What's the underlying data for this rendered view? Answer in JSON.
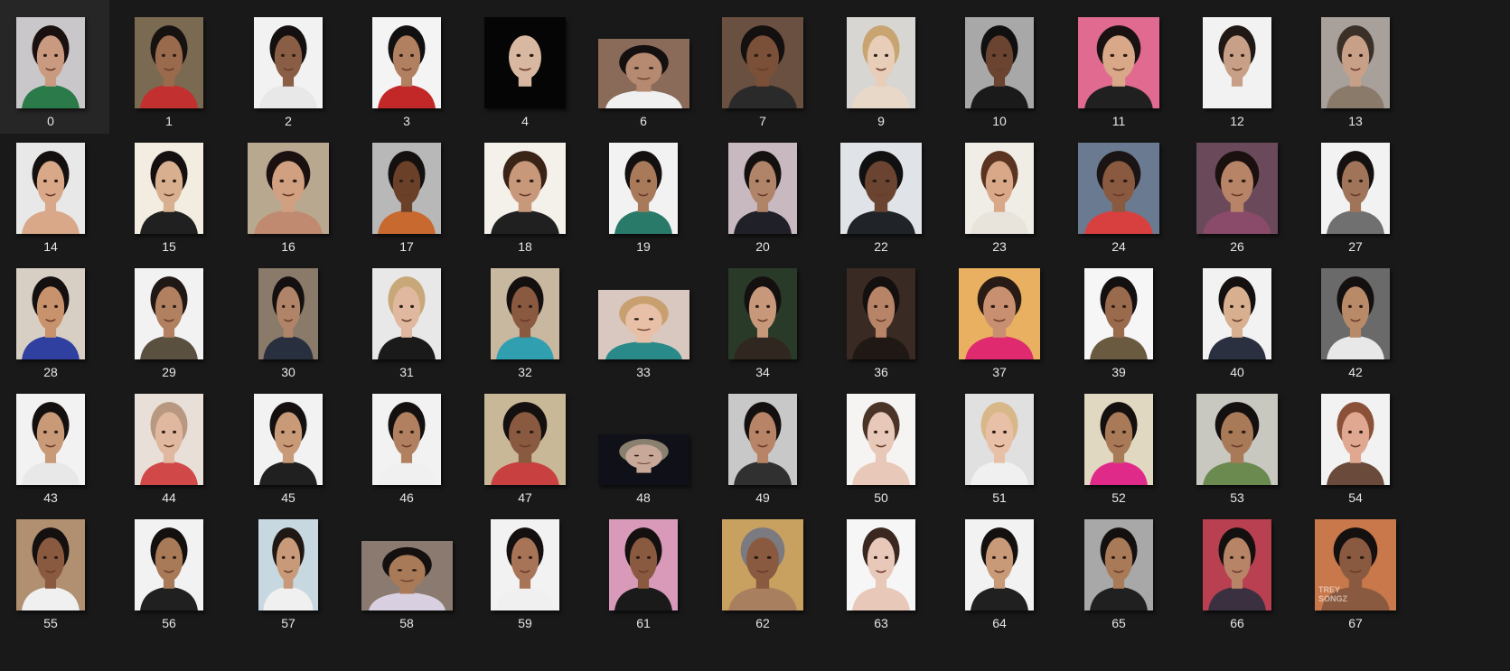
{
  "explorer": {
    "items": [
      {
        "label": "0",
        "icon": "portrait-thumbnail",
        "bg": "#c9c7c9",
        "skin": "#c99a80",
        "hair": "#1a1010",
        "shirt": "#2b7a4a",
        "shape": "portrait"
      },
      {
        "label": "1",
        "icon": "portrait-thumbnail",
        "bg": "#7a6a52",
        "skin": "#9a6a4c",
        "hair": "#161210",
        "shirt": "#c23030",
        "shape": "portrait"
      },
      {
        "label": "2",
        "icon": "portrait-thumbnail",
        "bg": "#f2f2f2",
        "skin": "#8a5e45",
        "hair": "#141010",
        "shirt": "#e8e8e8",
        "shape": "portrait"
      },
      {
        "label": "3",
        "icon": "portrait-thumbnail",
        "bg": "#f4f4f4",
        "skin": "#b08060",
        "hair": "#121010",
        "shirt": "#c22828",
        "shape": "portrait"
      },
      {
        "label": "4",
        "icon": "portrait-thumbnail",
        "bg": "#050505",
        "skin": "#d8b8a0",
        "hair": "#050505",
        "shirt": "#050505",
        "shape": "wide"
      },
      {
        "label": "6",
        "icon": "portrait-thumbnail",
        "bg": "#8a6a58",
        "skin": "#b58a70",
        "hair": "#151010",
        "shirt": "#f0f0f0",
        "shape": "landscape"
      },
      {
        "label": "7",
        "icon": "portrait-thumbnail",
        "bg": "#6a5040",
        "skin": "#7a5038",
        "hair": "#141010",
        "shirt": "#2a2a2a",
        "shape": "wide"
      },
      {
        "label": "9",
        "icon": "portrait-thumbnail",
        "bg": "#d8d6d2",
        "skin": "#e8cdb8",
        "hair": "#c7a470",
        "shirt": "#e8d8c8",
        "shape": "portrait"
      },
      {
        "label": "10",
        "icon": "portrait-thumbnail",
        "bg": "#a8a8a8",
        "skin": "#6a4430",
        "hair": "#101010",
        "shirt": "#1a1a1a",
        "shape": "portrait"
      },
      {
        "label": "11",
        "icon": "portrait-thumbnail",
        "bg": "#e06a90",
        "skin": "#d8a888",
        "hair": "#1a1212",
        "shirt": "#202020",
        "shape": "wide"
      },
      {
        "label": "12",
        "icon": "portrait-thumbnail",
        "bg": "#f2f2f2",
        "skin": "#c8a088",
        "hair": "#201814",
        "shirt": "#f2f2f2",
        "shape": "portrait"
      },
      {
        "label": "13",
        "icon": "portrait-thumbnail",
        "bg": "#a8a09a",
        "skin": "#c8a088",
        "hair": "#3a3028",
        "shirt": "#8a7a6a",
        "shape": "portrait"
      },
      {
        "label": "14",
        "icon": "portrait-thumbnail",
        "bg": "#e8e8e8",
        "skin": "#d8a888",
        "hair": "#141010",
        "shirt": "#d8a888",
        "shape": "portrait"
      },
      {
        "label": "15",
        "icon": "portrait-thumbnail",
        "bg": "#f2ede0",
        "skin": "#d8b090",
        "hair": "#141010",
        "shirt": "#202020",
        "shape": "portrait"
      },
      {
        "label": "16",
        "icon": "portrait-thumbnail",
        "bg": "#b8a890",
        "skin": "#d0a080",
        "hair": "#1a1010",
        "shirt": "#c08a70",
        "shape": "wide"
      },
      {
        "label": "17",
        "icon": "portrait-thumbnail",
        "bg": "#b8b8b8",
        "skin": "#6a4028",
        "hair": "#141010",
        "shirt": "#c86a30",
        "shape": "portrait"
      },
      {
        "label": "18",
        "icon": "portrait-thumbnail",
        "bg": "#f4f0ea",
        "skin": "#c8987a",
        "hair": "#3a2418",
        "shirt": "#202020",
        "shape": "wide"
      },
      {
        "label": "19",
        "icon": "portrait-thumbnail",
        "bg": "#f2f2f2",
        "skin": "#a87a5a",
        "hair": "#141010",
        "shirt": "#2a7a6a",
        "shape": "portrait"
      },
      {
        "label": "20",
        "icon": "portrait-thumbnail",
        "bg": "#c8b8c0",
        "skin": "#b08468",
        "hair": "#141010",
        "shirt": "#202028",
        "shape": "portrait"
      },
      {
        "label": "22",
        "icon": "portrait-thumbnail",
        "bg": "#e0e4e8",
        "skin": "#6a4430",
        "hair": "#101010",
        "shirt": "#202428",
        "shape": "wide"
      },
      {
        "label": "23",
        "icon": "portrait-thumbnail",
        "bg": "#f0ece6",
        "skin": "#d8a888",
        "hair": "#5a3420",
        "shirt": "#e8e4dc",
        "shape": "portrait"
      },
      {
        "label": "24",
        "icon": "portrait-thumbnail",
        "bg": "#6a7a90",
        "skin": "#8a5a40",
        "hair": "#1a1414",
        "shirt": "#d84040",
        "shape": "wide"
      },
      {
        "label": "26",
        "icon": "portrait-thumbnail",
        "bg": "#6a4a5a",
        "skin": "#b88468",
        "hair": "#1a1010",
        "shirt": "#8a4a6a",
        "shape": "wide"
      },
      {
        "label": "27",
        "icon": "portrait-thumbnail",
        "bg": "#f2f2f2",
        "skin": "#a07458",
        "hair": "#141010",
        "shirt": "#707070",
        "shape": "portrait"
      },
      {
        "label": "28",
        "icon": "portrait-thumbnail",
        "bg": "#d8cfc4",
        "skin": "#c8926c",
        "hair": "#141010",
        "shirt": "#3040a0",
        "shape": "portrait"
      },
      {
        "label": "29",
        "icon": "portrait-thumbnail",
        "bg": "#f2f2f2",
        "skin": "#b08060",
        "hair": "#201814",
        "shirt": "#5a5040",
        "shape": "portrait"
      },
      {
        "label": "30",
        "icon": "portrait-thumbnail",
        "bg": "#8a7a6a",
        "skin": "#b08468",
        "hair": "#141010",
        "shirt": "#283040",
        "shape": "narrow"
      },
      {
        "label": "31",
        "icon": "portrait-thumbnail",
        "bg": "#e8e8e8",
        "skin": "#e0b8a0",
        "hair": "#c8a878",
        "shirt": "#1a1a1a",
        "shape": "portrait"
      },
      {
        "label": "32",
        "icon": "portrait-thumbnail",
        "bg": "#c8b8a0",
        "skin": "#8a5a40",
        "hair": "#141010",
        "shirt": "#30a0b0",
        "shape": "portrait"
      },
      {
        "label": "33",
        "icon": "portrait-thumbnail",
        "bg": "#d8c8c0",
        "skin": "#e8c0a8",
        "hair": "#c8a070",
        "shirt": "#2a8a8a",
        "shape": "landscape"
      },
      {
        "label": "34",
        "icon": "portrait-thumbnail",
        "bg": "#2a3a28",
        "skin": "#c8987a",
        "hair": "#141010",
        "shirt": "#302820",
        "shape": "portrait"
      },
      {
        "label": "36",
        "icon": "portrait-thumbnail",
        "bg": "#3a2a24",
        "skin": "#b88468",
        "hair": "#141010",
        "shirt": "#201814",
        "shape": "portrait"
      },
      {
        "label": "37",
        "icon": "portrait-thumbnail",
        "bg": "#e8b060",
        "skin": "#c89070",
        "hair": "#281a14",
        "shirt": "#e02a70",
        "shape": "wide"
      },
      {
        "label": "39",
        "icon": "portrait-thumbnail",
        "bg": "#f6f6f6",
        "skin": "#9a6a4c",
        "hair": "#141010",
        "shirt": "#6a5a40",
        "shape": "portrait"
      },
      {
        "label": "40",
        "icon": "portrait-thumbnail",
        "bg": "#f2f2f2",
        "skin": "#d8b090",
        "hair": "#141010",
        "shirt": "#2a3040",
        "shape": "portrait"
      },
      {
        "label": "42",
        "icon": "portrait-thumbnail",
        "bg": "#6a6a6a",
        "skin": "#b88a68",
        "hair": "#141010",
        "shirt": "#e8e8e8",
        "shape": "portrait"
      },
      {
        "label": "43",
        "icon": "portrait-thumbnail",
        "bg": "#f2f2f2",
        "skin": "#c89a78",
        "hair": "#141010",
        "shirt": "#e8e8e8",
        "shape": "portrait"
      },
      {
        "label": "44",
        "icon": "portrait-thumbnail",
        "bg": "#e8e0d8",
        "skin": "#e0b8a0",
        "hair": "#b89880",
        "shirt": "#d04848",
        "shape": "portrait"
      },
      {
        "label": "45",
        "icon": "portrait-thumbnail",
        "bg": "#f2f2f2",
        "skin": "#c89a78",
        "hair": "#141010",
        "shirt": "#202020",
        "shape": "portrait"
      },
      {
        "label": "46",
        "icon": "portrait-thumbnail",
        "bg": "#f2f2f2",
        "skin": "#b08060",
        "hair": "#141010",
        "shirt": "#f0f0f0",
        "shape": "portrait"
      },
      {
        "label": "47",
        "icon": "portrait-thumbnail",
        "bg": "#c8b898",
        "skin": "#8a5a40",
        "hair": "#141010",
        "shirt": "#c84040",
        "shape": "wide"
      },
      {
        "label": "48",
        "icon": "portrait-thumbnail",
        "bg": "#101018",
        "skin": "#c8a898",
        "hair": "#8a8070",
        "shirt": "#101018",
        "shape": "landscape-low"
      },
      {
        "label": "49",
        "icon": "portrait-thumbnail",
        "bg": "#c8c8c8",
        "skin": "#b88468",
        "hair": "#141010",
        "shirt": "#303030",
        "shape": "portrait"
      },
      {
        "label": "50",
        "icon": "portrait-thumbnail",
        "bg": "#f6f4f2",
        "skin": "#e8c8b8",
        "hair": "#4a3428",
        "shirt": "#e8c8b8",
        "shape": "portrait"
      },
      {
        "label": "51",
        "icon": "portrait-thumbnail",
        "bg": "#e0e0e0",
        "skin": "#e8c0a8",
        "hair": "#d8b888",
        "shirt": "#f0f0f0",
        "shape": "portrait"
      },
      {
        "label": "52",
        "icon": "portrait-thumbnail",
        "bg": "#e0d8c0",
        "skin": "#a87a58",
        "hair": "#141010",
        "shirt": "#e02a8a",
        "shape": "portrait"
      },
      {
        "label": "53",
        "icon": "portrait-thumbnail",
        "bg": "#c8c8c0",
        "skin": "#a87a58",
        "hair": "#141010",
        "shirt": "#6a8a50",
        "shape": "wide"
      },
      {
        "label": "54",
        "icon": "portrait-thumbnail",
        "bg": "#f2f2f2",
        "skin": "#e0a890",
        "hair": "#8a5038",
        "shirt": "#6a4a3a",
        "shape": "portrait"
      },
      {
        "label": "55",
        "icon": "portrait-thumbnail",
        "bg": "#b09070",
        "skin": "#8a5a40",
        "hair": "#141010",
        "shirt": "#f0f0f0",
        "shape": "portrait"
      },
      {
        "label": "56",
        "icon": "portrait-thumbnail",
        "bg": "#f2f2f2",
        "skin": "#a87a58",
        "hair": "#141010",
        "shirt": "#202020",
        "shape": "portrait"
      },
      {
        "label": "57",
        "icon": "portrait-thumbnail",
        "bg": "#c8d8e0",
        "skin": "#c89a7a",
        "hair": "#201814",
        "shirt": "#f0f0f0",
        "shape": "narrow"
      },
      {
        "label": "58",
        "icon": "portrait-thumbnail",
        "bg": "#8a7a70",
        "skin": "#a87a58",
        "hair": "#141010",
        "shirt": "#d8d0e0",
        "shape": "landscape"
      },
      {
        "label": "59",
        "icon": "portrait-thumbnail",
        "bg": "#f2f2f2",
        "skin": "#a87458",
        "hair": "#141010",
        "shirt": "#f0f0f0",
        "shape": "portrait"
      },
      {
        "label": "61",
        "icon": "portrait-thumbnail",
        "bg": "#d89ab8",
        "skin": "#8a5a40",
        "hair": "#141010",
        "shirt": "#1a1a1a",
        "shape": "portrait"
      },
      {
        "label": "62",
        "icon": "portrait-thumbnail",
        "bg": "#c8a060",
        "skin": "#8a5a40",
        "hair": "#7a7a80",
        "shirt": "#a88060",
        "shape": "wide"
      },
      {
        "label": "63",
        "icon": "portrait-thumbnail",
        "bg": "#f6f6f6",
        "skin": "#e8c8b8",
        "hair": "#3a2820",
        "shirt": "#e8c8b8",
        "shape": "portrait"
      },
      {
        "label": "64",
        "icon": "portrait-thumbnail",
        "bg": "#f2f2f2",
        "skin": "#c89a78",
        "hair": "#141010",
        "shirt": "#202020",
        "shape": "portrait"
      },
      {
        "label": "65",
        "icon": "portrait-thumbnail",
        "bg": "#a8a8a8",
        "skin": "#a87a58",
        "hair": "#141010",
        "shirt": "#202020",
        "shape": "portrait"
      },
      {
        "label": "66",
        "icon": "portrait-thumbnail",
        "bg": "#b84050",
        "skin": "#b88468",
        "hair": "#141010",
        "shirt": "#3a3040",
        "shape": "portrait"
      },
      {
        "label": "67",
        "icon": "portrait-thumbnail",
        "bg": "#c8784a",
        "skin": "#8a5a40",
        "hair": "#141010",
        "shirt": "#8a5a40",
        "shape": "wide",
        "watermark": "TREY SONGZ"
      }
    ]
  }
}
